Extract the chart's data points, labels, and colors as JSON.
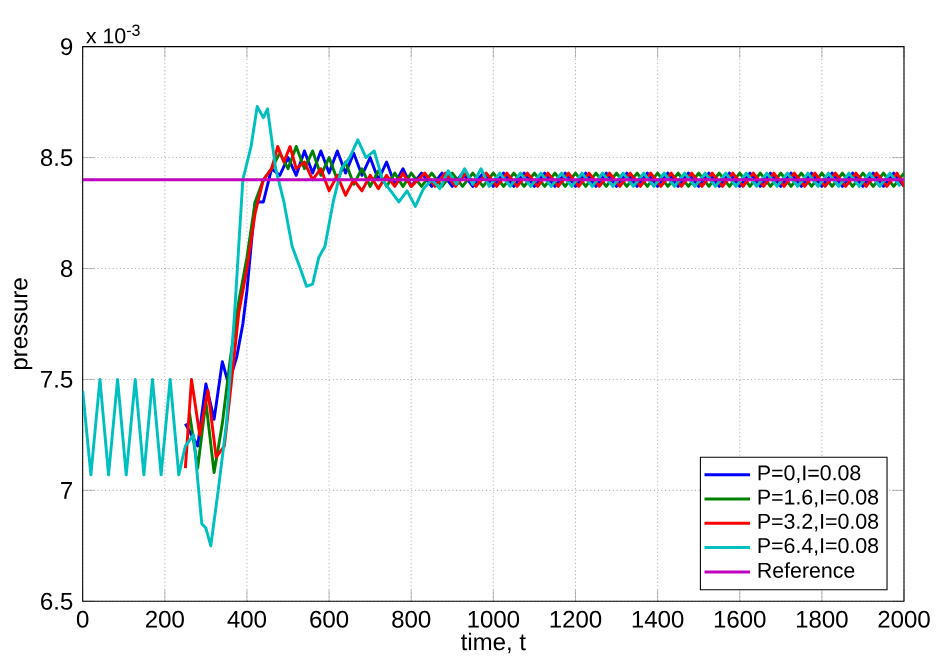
{
  "chart_data": {
    "type": "line",
    "xlabel": "time, t",
    "ylabel": "pressure",
    "annotations": [
      "x 10$^{-3}$"
    ],
    "xlim": [
      0,
      2000
    ],
    "xticks": [
      0,
      200,
      400,
      600,
      800,
      1000,
      1200,
      1400,
      1600,
      1800,
      2000
    ],
    "ylim": [
      6.5,
      9
    ],
    "yticks": [
      6.5,
      7,
      7.5,
      8,
      8.5,
      9
    ],
    "grid": true,
    "legend": "bottom right",
    "line_style": "solid",
    "series": [
      {
        "name": "P=0,I=0.08",
        "color": "#0000ff",
        "x": [
          250,
          280,
          300,
          320,
          340,
          355,
          375,
          390,
          400,
          420,
          440,
          460,
          480,
          500,
          520,
          540,
          560,
          580,
          600,
          620,
          640,
          660,
          680,
          700,
          720,
          740,
          760,
          780,
          800,
          825,
          850,
          875,
          900,
          925,
          950,
          975,
          1000,
          1025,
          1050,
          1075,
          1100,
          1125,
          1150,
          1175,
          1200,
          1225,
          1250,
          1275,
          1300,
          1325,
          1350,
          1375,
          1400,
          1425,
          1450,
          1475,
          1500,
          1525,
          1550,
          1575,
          1600,
          1625,
          1650,
          1675,
          1700,
          1725,
          1750,
          1775,
          1800,
          1825,
          1850,
          1875,
          1900,
          1925,
          1950,
          1975,
          2000
        ],
        "values": [
          7.3,
          7.2,
          7.48,
          7.32,
          7.58,
          7.48,
          7.6,
          7.75,
          7.9,
          8.3,
          8.3,
          8.45,
          8.42,
          8.5,
          8.42,
          8.53,
          8.43,
          8.53,
          8.43,
          8.53,
          8.43,
          8.52,
          8.42,
          8.5,
          8.4,
          8.48,
          8.38,
          8.45,
          8.37,
          8.43,
          8.37,
          8.43,
          8.37,
          8.43,
          8.37,
          8.43,
          8.37,
          8.43,
          8.37,
          8.43,
          8.37,
          8.43,
          8.37,
          8.43,
          8.37,
          8.43,
          8.37,
          8.43,
          8.37,
          8.43,
          8.37,
          8.43,
          8.37,
          8.43,
          8.37,
          8.43,
          8.37,
          8.43,
          8.37,
          8.43,
          8.37,
          8.43,
          8.37,
          8.43,
          8.37,
          8.43,
          8.37,
          8.43,
          8.37,
          8.43,
          8.37,
          8.43,
          8.37,
          8.43,
          8.37,
          8.43,
          8.37
        ]
      },
      {
        "name": "P=1.6,I=0.08",
        "color": "#008000",
        "x": [
          260,
          280,
          300,
          320,
          340,
          360,
          380,
          400,
          420,
          440,
          460,
          480,
          500,
          520,
          540,
          560,
          580,
          600,
          620,
          640,
          660,
          680,
          700,
          720,
          740,
          760,
          780,
          800,
          825,
          850,
          875,
          900,
          925,
          950,
          975,
          1000,
          1025,
          1050,
          1075,
          1100,
          1125,
          1150,
          1175,
          1200,
          1225,
          1250,
          1275,
          1300,
          1325,
          1350,
          1375,
          1400,
          1425,
          1450,
          1475,
          1500,
          1525,
          1550,
          1575,
          1600,
          1625,
          1650,
          1675,
          1700,
          1725,
          1750,
          1775,
          1800,
          1825,
          1850,
          1875,
          1900,
          1925,
          1950,
          1975,
          2000
        ],
        "values": [
          7.35,
          7.1,
          7.4,
          7.08,
          7.3,
          7.6,
          7.85,
          8.05,
          8.3,
          8.4,
          8.45,
          8.52,
          8.45,
          8.55,
          8.45,
          8.53,
          8.42,
          8.5,
          8.4,
          8.48,
          8.38,
          8.45,
          8.37,
          8.44,
          8.37,
          8.43,
          8.37,
          8.43,
          8.37,
          8.43,
          8.37,
          8.43,
          8.37,
          8.43,
          8.37,
          8.43,
          8.37,
          8.43,
          8.37,
          8.43,
          8.37,
          8.43,
          8.37,
          8.43,
          8.37,
          8.43,
          8.37,
          8.43,
          8.37,
          8.43,
          8.37,
          8.43,
          8.37,
          8.43,
          8.37,
          8.43,
          8.37,
          8.43,
          8.37,
          8.43,
          8.37,
          8.43,
          8.37,
          8.43,
          8.37,
          8.43,
          8.37,
          8.43,
          8.37,
          8.43,
          8.37,
          8.43,
          8.37,
          8.43,
          8.37,
          8.43
        ]
      },
      {
        "name": "P=3.2,I=0.08",
        "color": "#ff0000",
        "x": [
          250,
          265,
          285,
          305,
          325,
          345,
          360,
          380,
          400,
          420,
          440,
          460,
          475,
          490,
          505,
          520,
          540,
          560,
          580,
          600,
          620,
          640,
          660,
          680,
          700,
          720,
          740,
          760,
          780,
          800,
          833,
          858,
          883,
          908,
          933,
          958,
          983,
          1008,
          1033,
          1058,
          1083,
          1108,
          1133,
          1158,
          1183,
          1208,
          1233,
          1258,
          1283,
          1308,
          1333,
          1358,
          1383,
          1408,
          1433,
          1458,
          1483,
          1508,
          1533,
          1558,
          1583,
          1608,
          1633,
          1658,
          1683,
          1708,
          1733,
          1758,
          1783,
          1808,
          1833,
          1858,
          1883,
          1908,
          1933,
          1958,
          1983,
          2000
        ],
        "values": [
          7.1,
          7.5,
          7.25,
          7.45,
          7.15,
          7.2,
          7.45,
          7.8,
          8.0,
          8.25,
          8.4,
          8.45,
          8.55,
          8.48,
          8.55,
          8.45,
          8.48,
          8.4,
          8.45,
          8.35,
          8.42,
          8.33,
          8.4,
          8.35,
          8.42,
          8.36,
          8.42,
          8.37,
          8.43,
          8.37,
          8.43,
          8.37,
          8.43,
          8.37,
          8.43,
          8.37,
          8.43,
          8.37,
          8.43,
          8.37,
          8.43,
          8.37,
          8.43,
          8.37,
          8.43,
          8.37,
          8.43,
          8.37,
          8.43,
          8.37,
          8.43,
          8.37,
          8.43,
          8.37,
          8.43,
          8.37,
          8.43,
          8.37,
          8.43,
          8.37,
          8.43,
          8.37,
          8.43,
          8.37,
          8.43,
          8.37,
          8.43,
          8.37,
          8.43,
          8.37,
          8.43,
          8.37,
          8.43,
          8.37,
          8.43,
          8.37,
          8.43,
          8.37
        ]
      },
      {
        "name": "P=6.4,I=0.08",
        "color": "#00bfbf",
        "x": [
          0,
          20,
          42,
          63,
          85,
          106,
          128,
          149,
          170,
          191,
          213,
          234,
          250,
          270,
          290,
          300,
          312,
          330,
          350,
          370,
          390,
          410,
          425,
          440,
          450,
          470,
          490,
          510,
          530,
          545,
          560,
          575,
          590,
          610,
          630,
          650,
          670,
          690,
          710,
          730,
          750,
          770,
          790,
          810,
          830,
          850,
          870,
          890,
          910,
          930,
          950,
          970,
          990,
          1016,
          1041,
          1066,
          1091,
          1116,
          1141,
          1166,
          1191,
          1216,
          1241,
          1266,
          1291,
          1316,
          1341,
          1366,
          1391,
          1416,
          1441,
          1466,
          1491,
          1516,
          1541,
          1566,
          1591,
          1616,
          1641,
          1666,
          1691,
          1716,
          1741,
          1766,
          1791,
          1816,
          1841,
          1866,
          1891,
          1916,
          1941,
          1966,
          1991
        ],
        "values": [
          7.45,
          7.07,
          7.5,
          7.07,
          7.5,
          7.07,
          7.5,
          7.07,
          7.5,
          7.07,
          7.5,
          7.07,
          7.2,
          7.25,
          6.85,
          6.83,
          6.75,
          7.0,
          7.3,
          7.8,
          8.4,
          8.55,
          8.73,
          8.68,
          8.72,
          8.45,
          8.3,
          8.1,
          8.0,
          7.92,
          7.93,
          8.05,
          8.1,
          8.3,
          8.45,
          8.5,
          8.58,
          8.5,
          8.53,
          8.4,
          8.35,
          8.3,
          8.35,
          8.28,
          8.36,
          8.4,
          8.36,
          8.44,
          8.38,
          8.45,
          8.38,
          8.45,
          8.37,
          8.43,
          8.37,
          8.43,
          8.37,
          8.43,
          8.37,
          8.43,
          8.37,
          8.43,
          8.37,
          8.43,
          8.37,
          8.43,
          8.37,
          8.43,
          8.37,
          8.43,
          8.37,
          8.43,
          8.37,
          8.43,
          8.37,
          8.43,
          8.37,
          8.43,
          8.37,
          8.43,
          8.37,
          8.43,
          8.37,
          8.43,
          8.37,
          8.43,
          8.37,
          8.43,
          8.37,
          8.43,
          8.37,
          8.43,
          8.37
        ]
      },
      {
        "name": "Reference",
        "color": "#bf00bf",
        "x": [
          0,
          2000
        ],
        "values": [
          8.4,
          8.4
        ]
      }
    ]
  }
}
